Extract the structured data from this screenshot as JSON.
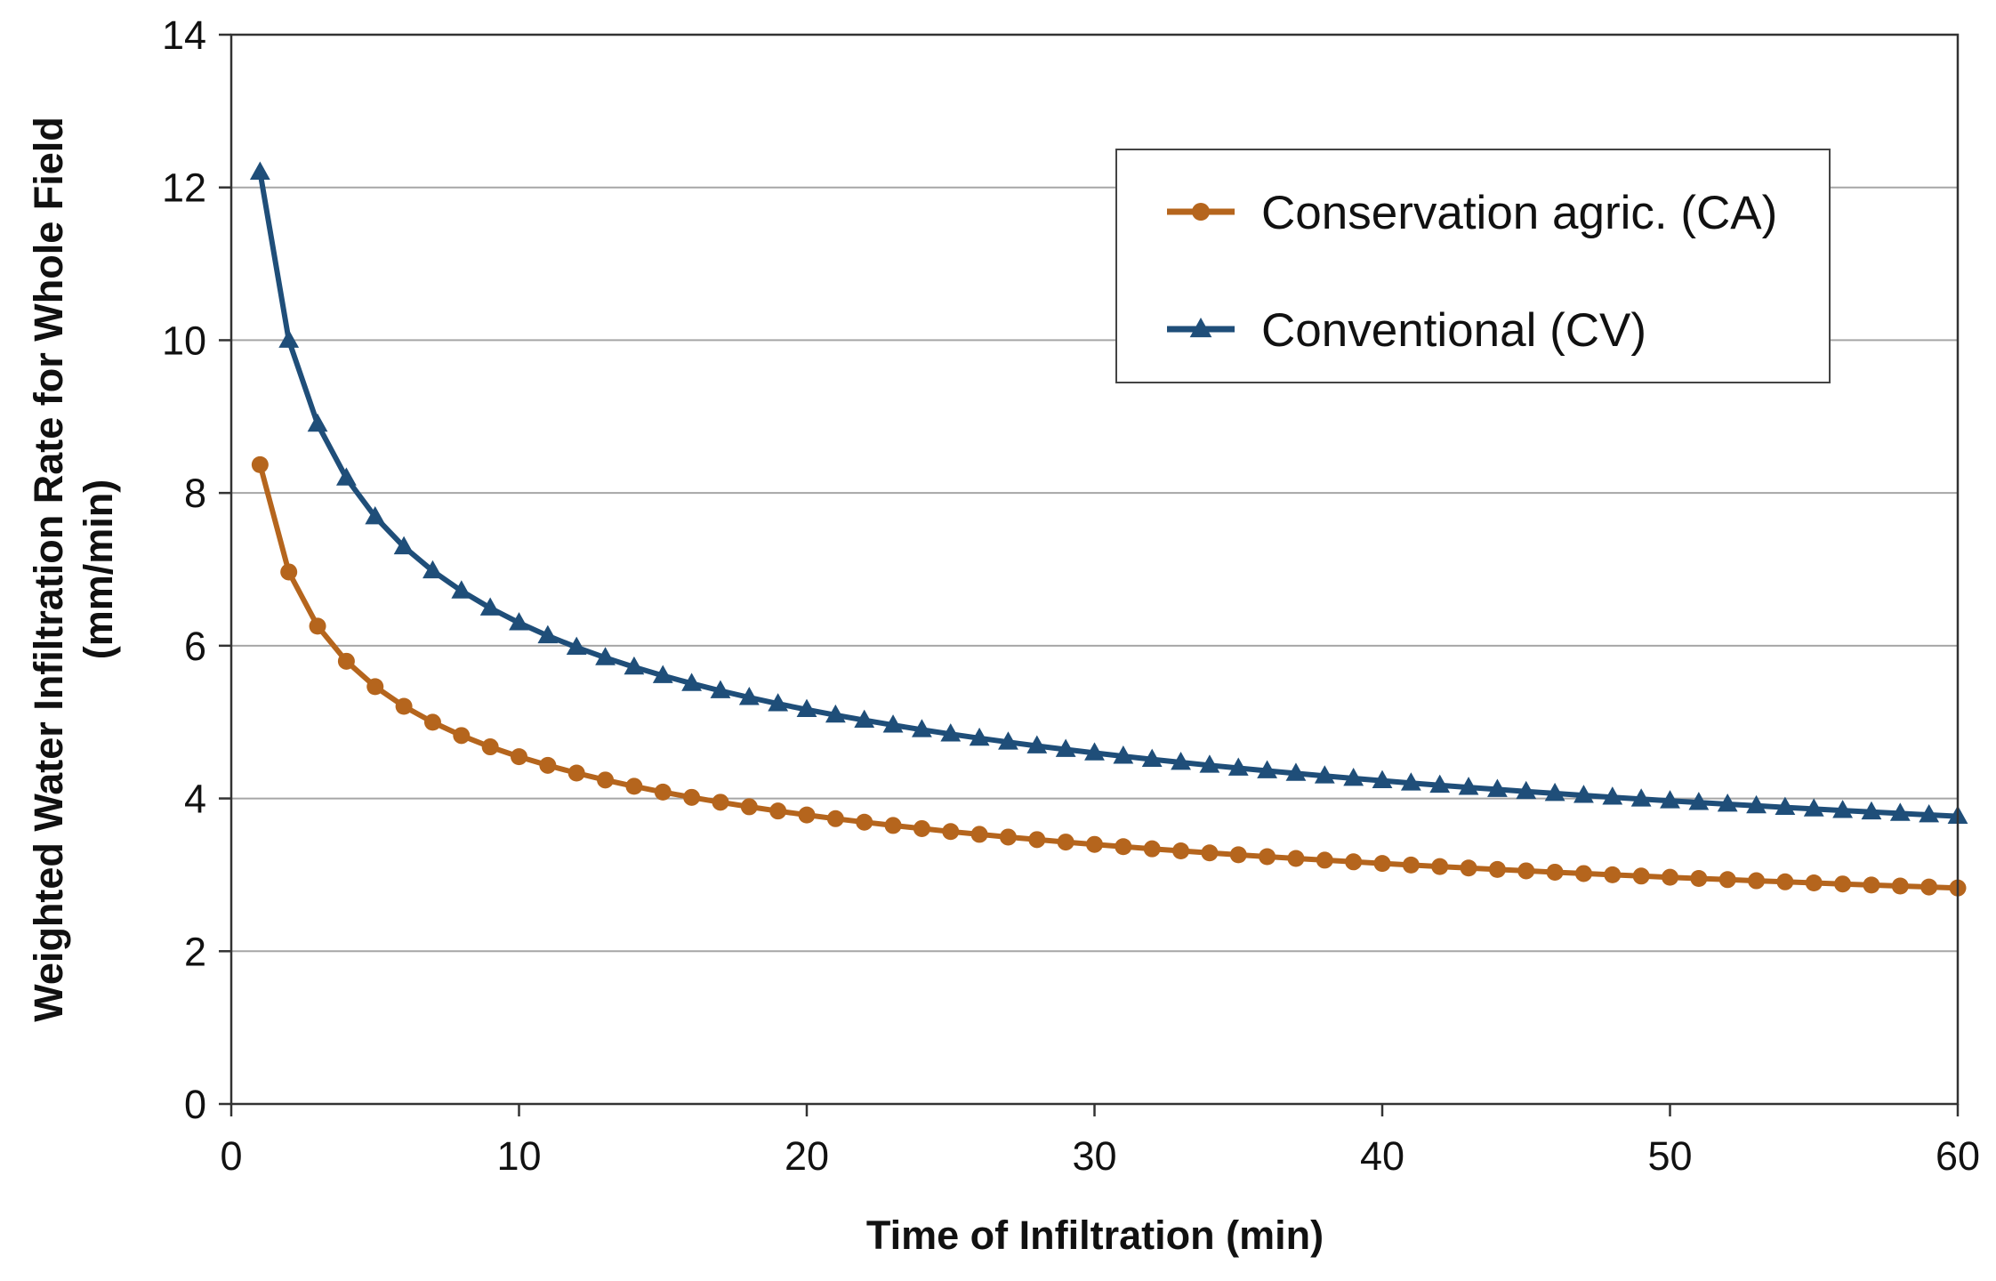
{
  "chart_data": {
    "type": "line",
    "title": "",
    "xlabel": "Time of Infiltration (min)",
    "ylabel_lines": [
      "Weighted Water Infiltration Rate for Whole Field",
      "(mm/min)"
    ],
    "xlim": [
      0,
      60
    ],
    "ylim": [
      0,
      14
    ],
    "xticks": [
      0,
      10,
      20,
      30,
      40,
      50,
      60
    ],
    "yticks": [
      0,
      2,
      4,
      6,
      8,
      10,
      12,
      14
    ],
    "grid": "horizontal",
    "legend_position": "top-right",
    "series": [
      {
        "name": "Conservation agric. (CA)",
        "color": "#b5651d",
        "marker": "circle",
        "k": 8.37,
        "exponent": -0.265
      },
      {
        "name": "Conventional (CV)",
        "color": "#1f4e79",
        "marker": "triangle",
        "k": 12.2,
        "exponent": -0.287
      }
    ]
  }
}
